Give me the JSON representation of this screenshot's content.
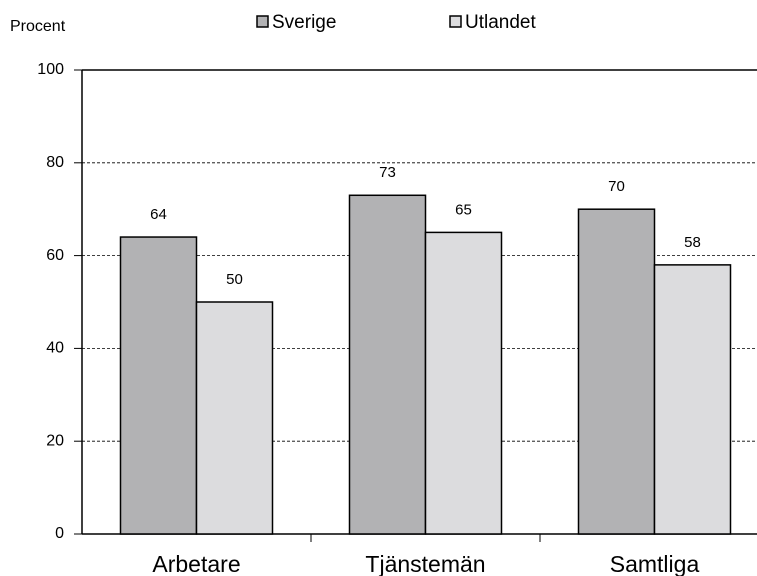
{
  "chart_data": {
    "type": "bar",
    "ylabel": "Procent",
    "categories": [
      "Arbetare",
      "Tjänstemän",
      "Samtliga"
    ],
    "series": [
      {
        "name": "Sverige",
        "color": "#b2b2b4",
        "values": [
          64,
          73,
          70
        ]
      },
      {
        "name": "Utlandet",
        "color": "#dcdcde",
        "values": [
          50,
          65,
          58
        ]
      }
    ],
    "ylim": [
      0,
      100
    ],
    "yticks": [
      0,
      20,
      40,
      60,
      80,
      100
    ],
    "grid": true
  }
}
